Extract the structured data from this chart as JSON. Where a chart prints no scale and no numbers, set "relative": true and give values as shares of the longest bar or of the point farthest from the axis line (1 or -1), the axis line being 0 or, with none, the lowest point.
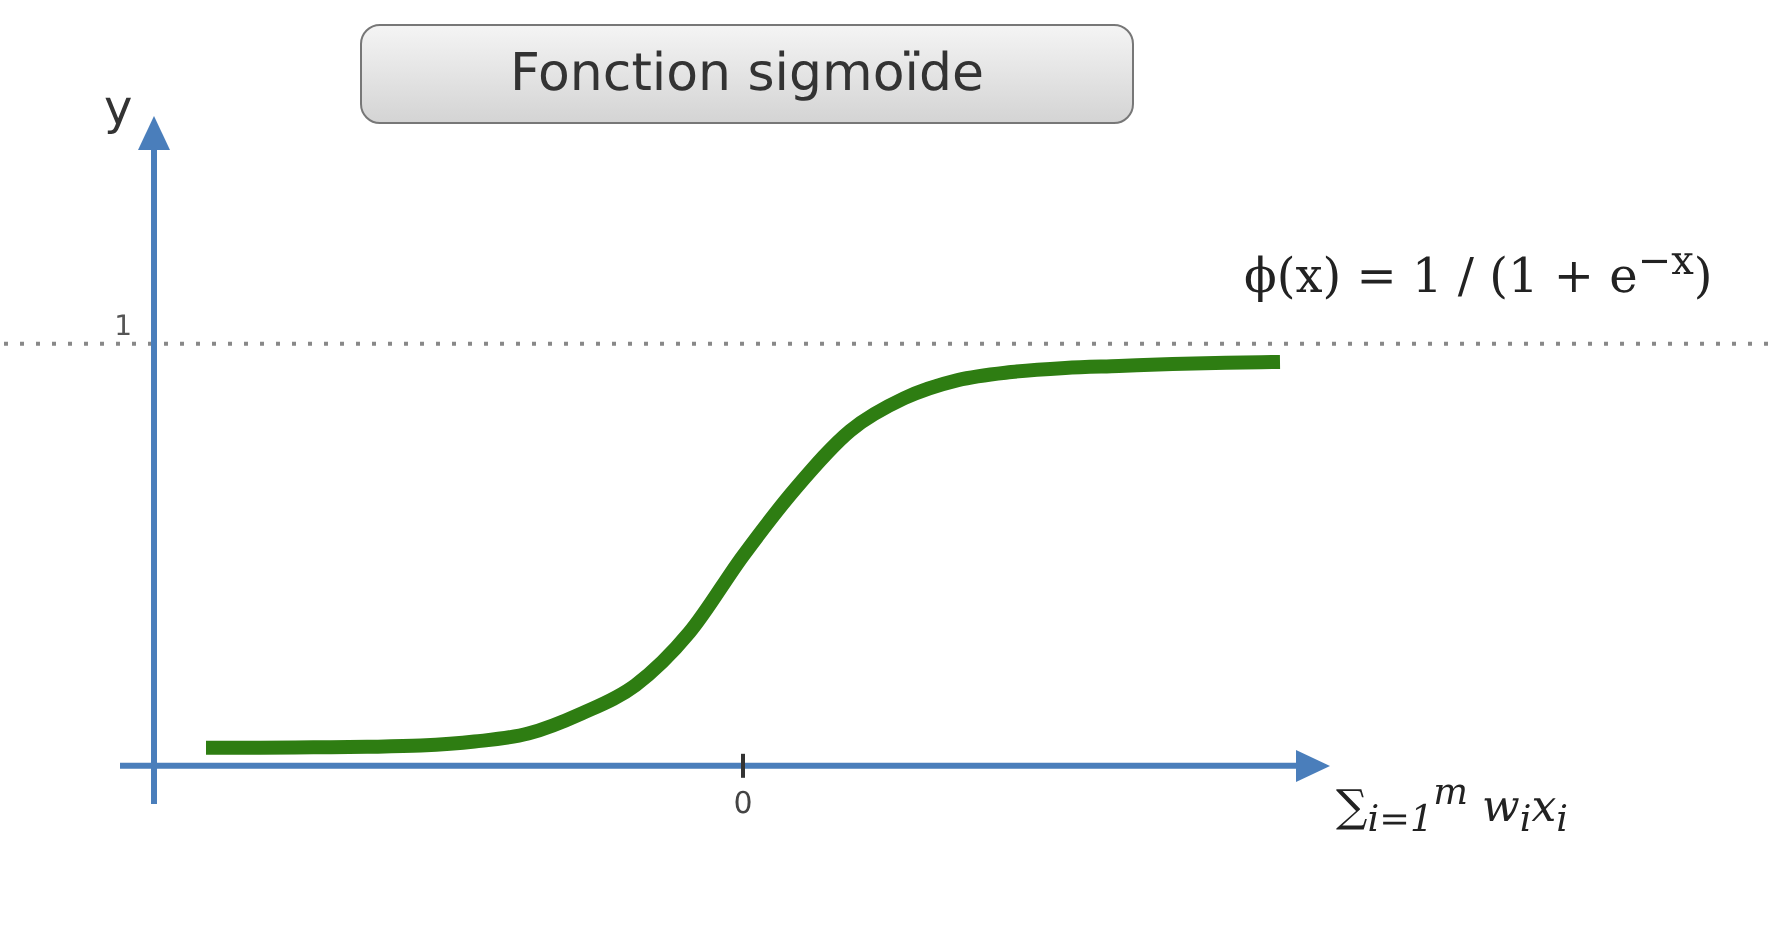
{
  "chart_data": {
    "type": "line",
    "title": "Fonction sigmoïde",
    "xlabel": "∑$_{i=1}$$^{m}$ w$_{i}$x$_{i}$",
    "ylabel": "y",
    "categories": [
      null,
      null,
      null,
      null,
      null,
      null,
      null,
      null,
      null,
      null,
      null,
      null,
      null,
      null,
      null,
      null,
      null,
      null,
      null,
      null,
      null
    ],
    "values": [
      0.045,
      0.045,
      0.046,
      0.047,
      0.05,
      0.06,
      0.08,
      0.13,
      0.2,
      0.33,
      0.52,
      0.69,
      0.83,
      0.91,
      0.955,
      0.975,
      0.985,
      0.99,
      0.995,
      0.998,
      1
    ],
    "color": "#2e7d12",
    "relative": true,
    "ref_lines": [
      {
        "axis": "y",
        "value": 1.045,
        "label": "1",
        "color": "#888888",
        "line_style": "dotted"
      }
    ],
    "annotations": [
      "ϕ(x) = 1 / (1 + e$^{−x}$)",
      "0"
    ],
    "legend": false
  }
}
